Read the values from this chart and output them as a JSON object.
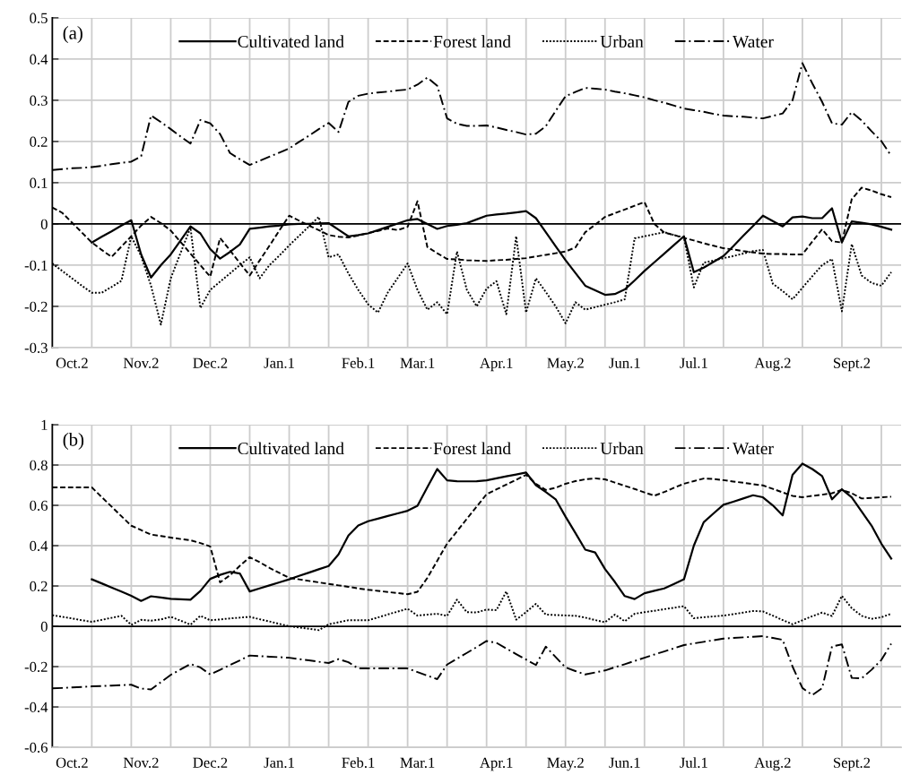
{
  "chart_data": [
    {
      "type": "line",
      "annotations": [
        "(a)"
      ],
      "legend": "top",
      "grid": true,
      "categories": [
        null,
        null,
        "Oct.2",
        null,
        null,
        null,
        null,
        null,
        null,
        "Nov.2",
        null,
        null,
        null,
        null,
        null,
        null,
        "Dec.2",
        null,
        null,
        null,
        null,
        null,
        null,
        "Jan.1",
        null,
        null,
        null,
        null,
        null,
        null,
        null,
        "Feb.1",
        null,
        null,
        null,
        null,
        null,
        "Mar.1",
        null,
        null,
        null,
        null,
        null,
        null,
        null,
        "Apr.1",
        null,
        null,
        null,
        null,
        null,
        null,
        "May.2",
        null,
        null,
        null,
        null,
        null,
        "Jun.1",
        null,
        null,
        null,
        null,
        null,
        null,
        "Jul.1",
        null,
        null,
        null,
        null,
        null,
        null,
        null,
        "Aug.2",
        null,
        null,
        null,
        null,
        null,
        null,
        null,
        "Sept.2",
        null,
        null,
        null,
        null,
        null
      ],
      "ylim": [
        -0.3,
        0.5
      ],
      "yticks": [
        -0.3,
        -0.2,
        -0.1,
        0,
        0.1,
        0.2,
        0.3,
        0.4,
        0.5
      ],
      "ref_lines": [
        {
          "axis": "y",
          "value": 0,
          "color": "#000000"
        }
      ],
      "series": [
        {
          "name": "Cultivated land",
          "color": "#000000",
          "line_style": "solid",
          "values": [
            null,
            null,
            null,
            null,
            -0.045,
            -0.031,
            -0.018,
            -0.004,
            0.009,
            -0.074,
            -0.13,
            -0.1,
            -0.074,
            -0.04,
            -0.006,
            -0.023,
            -0.061,
            -0.084,
            -0.068,
            -0.05,
            -0.012,
            -0.009,
            -0.006,
            -0.004,
            -0.001,
            0,
            0,
            0.001,
            0.002,
            -0.014,
            -0.03,
            -0.027,
            -0.023,
            -0.015,
            -0.007,
            0.001,
            0.009,
            0.012,
            0,
            -0.012,
            -0.005,
            -0.002,
            0.002,
            0.011,
            0.02,
            0.023,
            0.025,
            0.028,
            0.031,
            0.014,
            -0.02,
            -0.054,
            -0.088,
            -0.119,
            -0.15,
            -0.161,
            -0.172,
            -0.17,
            -0.159,
            -0.137,
            -0.114,
            -0.093,
            -0.072,
            -0.051,
            -0.03,
            -0.117,
            -0.106,
            -0.092,
            -0.078,
            -0.054,
            -0.029,
            -0.005,
            0.02,
            0.007,
            -0.006,
            0.016,
            0.018,
            0.014,
            0.014,
            0.038,
            -0.045,
            0.006,
            0.003,
            -0.001,
            -0.007,
            -0.014,
            null
          ]
        },
        {
          "name": "Forest land",
          "color": "#000000",
          "line_style": "dashed",
          "values": [
            0.04,
            0.027,
            0.003,
            -0.021,
            -0.045,
            -0.063,
            -0.08,
            -0.055,
            -0.03,
            -0.004,
            0.017,
            0.002,
            -0.016,
            -0.044,
            -0.072,
            -0.1,
            -0.128,
            -0.034,
            -0.064,
            -0.095,
            -0.125,
            -0.089,
            -0.053,
            -0.016,
            0.02,
            0.008,
            -0.004,
            -0.015,
            -0.027,
            -0.031,
            -0.033,
            -0.028,
            -0.022,
            -0.017,
            -0.011,
            -0.015,
            -0.007,
            0.055,
            -0.056,
            -0.071,
            -0.085,
            -0.086,
            -0.088,
            -0.089,
            -0.09,
            -0.088,
            -0.087,
            -0.085,
            -0.083,
            -0.079,
            -0.075,
            -0.071,
            -0.067,
            -0.057,
            -0.02,
            -0.002,
            0.017,
            0.026,
            0.035,
            0.044,
            0.053,
            0,
            -0.021,
            -0.027,
            -0.034,
            -0.04,
            -0.047,
            -0.053,
            -0.059,
            -0.062,
            -0.066,
            -0.069,
            -0.072,
            -0.073,
            -0.073,
            -0.074,
            -0.074,
            -0.043,
            -0.013,
            -0.042,
            -0.045,
            0.06,
            0.088,
            0.081,
            0.072,
            0.065,
            null
          ]
        },
        {
          "name": "Urban",
          "color": "#000000",
          "line_style": "dotted",
          "values": [
            -0.096,
            -0.114,
            -0.132,
            -0.15,
            -0.167,
            -0.167,
            -0.153,
            -0.138,
            -0.03,
            -0.078,
            -0.15,
            -0.244,
            -0.132,
            -0.07,
            -0.009,
            -0.204,
            -0.16,
            -0.14,
            -0.12,
            -0.1,
            -0.081,
            -0.132,
            -0.1,
            -0.077,
            -0.052,
            -0.029,
            -0.006,
            0.017,
            -0.081,
            -0.074,
            -0.12,
            -0.16,
            -0.195,
            -0.215,
            -0.166,
            -0.131,
            -0.096,
            -0.16,
            -0.208,
            -0.19,
            -0.219,
            -0.067,
            -0.16,
            -0.2,
            -0.157,
            -0.139,
            -0.219,
            -0.03,
            -0.215,
            -0.132,
            -0.165,
            -0.2,
            -0.241,
            -0.19,
            -0.208,
            -0.202,
            -0.196,
            -0.19,
            -0.183,
            -0.035,
            -0.03,
            -0.025,
            -0.02,
            -0.027,
            -0.033,
            -0.154,
            -0.094,
            -0.089,
            -0.083,
            -0.078,
            -0.072,
            -0.066,
            -0.063,
            -0.145,
            -0.163,
            -0.183,
            -0.155,
            -0.127,
            -0.1,
            -0.085,
            -0.212,
            -0.049,
            -0.125,
            -0.143,
            -0.15,
            -0.117,
            null
          ]
        },
        {
          "name": "Water",
          "color": "#000000",
          "line_style": "dashdot",
          "values": [
            0.131,
            0.133,
            0.135,
            0.136,
            0.138,
            0.141,
            0.145,
            0.148,
            0.151,
            0.164,
            0.263,
            0.247,
            0.23,
            0.212,
            0.195,
            0.252,
            0.244,
            0.218,
            0.172,
            0.157,
            0.143,
            0.153,
            0.163,
            0.173,
            0.183,
            0.199,
            0.214,
            0.23,
            0.245,
            0.223,
            0.296,
            0.311,
            0.316,
            0.319,
            0.321,
            0.324,
            0.326,
            0.338,
            0.355,
            0.335,
            0.256,
            0.243,
            0.238,
            0.238,
            0.239,
            0.234,
            0.228,
            0.223,
            0.217,
            0.219,
            0.237,
            0.274,
            0.31,
            0.32,
            0.33,
            0.328,
            0.326,
            0.321,
            0.317,
            0.312,
            0.307,
            0.3,
            0.294,
            0.287,
            0.28,
            0.276,
            0.272,
            0.267,
            0.263,
            0.261,
            0.26,
            0.258,
            0.256,
            0.262,
            0.268,
            0.3,
            0.39,
            0.341,
            0.296,
            0.244,
            0.241,
            0.271,
            0.251,
            0.225,
            0.201,
            0.165,
            null
          ]
        }
      ]
    },
    {
      "type": "line",
      "annotations": [
        "(b)"
      ],
      "legend": "top",
      "grid": true,
      "categories": [
        null,
        null,
        "Oct.2",
        null,
        null,
        null,
        null,
        null,
        null,
        "Nov.2",
        null,
        null,
        null,
        null,
        null,
        null,
        "Dec.2",
        null,
        null,
        null,
        null,
        null,
        null,
        "Jan.1",
        null,
        null,
        null,
        null,
        null,
        null,
        null,
        "Feb.1",
        null,
        null,
        null,
        null,
        null,
        "Mar.1",
        null,
        null,
        null,
        null,
        null,
        null,
        null,
        "Apr.1",
        null,
        null,
        null,
        null,
        null,
        null,
        "May.2",
        null,
        null,
        null,
        null,
        null,
        "Jun.1",
        null,
        null,
        null,
        null,
        null,
        null,
        "Jul.1",
        null,
        null,
        null,
        null,
        null,
        null,
        null,
        "Aug.2",
        null,
        null,
        null,
        null,
        null,
        null,
        null,
        "Sept.2",
        null,
        null,
        null,
        null,
        null
      ],
      "ylim": [
        -0.6,
        1
      ],
      "yticks": [
        -0.6,
        -0.4,
        -0.2,
        0,
        0.2,
        0.4,
        0.6,
        0.8,
        1
      ],
      "ref_lines": [
        {
          "axis": "y",
          "value": 0,
          "color": "#000000"
        }
      ],
      "series": [
        {
          "name": "Cultivated land",
          "color": "#000000",
          "line_style": "solid",
          "values": [
            null,
            null,
            null,
            null,
            0.233,
            0.213,
            0.192,
            0.172,
            0.151,
            0.126,
            0.149,
            0.143,
            0.136,
            0.134,
            0.132,
            0.175,
            0.235,
            0.255,
            0.27,
            0.262,
            0.173,
            0.188,
            0.203,
            0.218,
            0.233,
            0.25,
            0.266,
            0.283,
            0.299,
            0.357,
            0.45,
            0.5,
            0.521,
            0.534,
            0.547,
            0.56,
            0.573,
            0.598,
            0.69,
            0.78,
            0.724,
            0.72,
            0.719,
            0.72,
            0.724,
            0.734,
            0.744,
            0.753,
            0.763,
            0.7,
            0.666,
            0.63,
            0.544,
            0.463,
            0.38,
            0.366,
            0.284,
            0.22,
            0.15,
            0.135,
            0.164,
            0.176,
            0.188,
            0.21,
            0.233,
            0.4,
            0.516,
            0.56,
            0.603,
            0.618,
            0.634,
            0.65,
            0.64,
            0.6,
            0.55,
            0.751,
            0.807,
            0.78,
            0.745,
            0.63,
            0.68,
            0.64,
            0.57,
            0.5,
            0.41,
            0.336,
            null
          ]
        },
        {
          "name": "Forest land",
          "color": "#000000",
          "line_style": "dashed",
          "values": [
            0.689,
            0.689,
            0.689,
            0.689,
            0.689,
            0.641,
            0.594,
            0.546,
            0.499,
            0.477,
            0.455,
            0.448,
            0.44,
            0.433,
            0.427,
            0.413,
            0.396,
            0.218,
            0.253,
            0.3,
            0.343,
            0.318,
            0.29,
            0.265,
            0.24,
            0.233,
            0.225,
            0.218,
            0.21,
            0.203,
            0.196,
            0.188,
            0.181,
            0.176,
            0.17,
            0.165,
            0.159,
            0.171,
            0.24,
            0.325,
            0.41,
            0.471,
            0.533,
            0.594,
            0.655,
            0.679,
            0.703,
            0.727,
            0.751,
            0.707,
            0.676,
            0.687,
            0.707,
            0.72,
            0.729,
            0.734,
            0.729,
            0.713,
            0.697,
            0.681,
            0.664,
            0.648,
            0.666,
            0.687,
            0.707,
            0.72,
            0.733,
            0.731,
            0.725,
            0.718,
            0.712,
            0.705,
            0.699,
            0.682,
            0.664,
            0.647,
            0.64,
            0.647,
            0.653,
            0.66,
            0.677,
            0.66,
            0.634,
            0.637,
            0.64,
            0.643,
            null
          ]
        },
        {
          "name": "Urban",
          "color": "#000000",
          "line_style": "dotted",
          "values": [
            0.055,
            0.047,
            0.039,
            0.03,
            0.022,
            0.032,
            0.042,
            0.052,
            0.007,
            0.032,
            0.028,
            0.034,
            0.047,
            0.028,
            0.008,
            0.052,
            0.03,
            0.034,
            0.039,
            0.043,
            0.047,
            0.035,
            0.024,
            0.012,
            0,
            -0.006,
            -0.012,
            -0.019,
            0.01,
            0.02,
            0.03,
            0.03,
            0.03,
            0.044,
            0.059,
            0.073,
            0.087,
            0.053,
            0.058,
            0.062,
            0.052,
            0.132,
            0.07,
            0.069,
            0.083,
            0.08,
            0.173,
            0.033,
            0.07,
            0.111,
            0.058,
            0.056,
            0.054,
            0.052,
            0.043,
            0.031,
            0.02,
            0.058,
            0.025,
            0.062,
            0.07,
            0.077,
            0.085,
            0.092,
            0.1,
            0.04,
            0.045,
            0.049,
            0.053,
            0.06,
            0.068,
            0.076,
            0.074,
            0.053,
            0.031,
            0.01,
            0.03,
            0.05,
            0.068,
            0.051,
            0.151,
            0.09,
            0.052,
            0.037,
            0.045,
            0.062,
            null
          ]
        },
        {
          "name": "Water",
          "color": "#000000",
          "line_style": "dashdot",
          "values": [
            -0.308,
            -0.306,
            -0.303,
            -0.301,
            -0.298,
            -0.296,
            -0.294,
            -0.292,
            -0.29,
            -0.309,
            -0.313,
            -0.277,
            -0.241,
            -0.214,
            -0.187,
            -0.204,
            -0.239,
            -0.216,
            -0.192,
            -0.169,
            -0.145,
            -0.148,
            -0.151,
            -0.153,
            -0.156,
            -0.163,
            -0.169,
            -0.176,
            -0.182,
            -0.163,
            -0.178,
            -0.209,
            -0.209,
            -0.209,
            -0.209,
            -0.209,
            -0.209,
            -0.227,
            -0.245,
            -0.262,
            -0.19,
            -0.161,
            -0.132,
            -0.103,
            -0.073,
            -0.082,
            -0.11,
            -0.138,
            -0.165,
            -0.192,
            -0.101,
            -0.153,
            -0.204,
            -0.222,
            -0.239,
            -0.229,
            -0.219,
            -0.203,
            -0.188,
            -0.172,
            -0.156,
            -0.14,
            -0.125,
            -0.109,
            -0.093,
            -0.085,
            -0.077,
            -0.069,
            -0.061,
            -0.058,
            -0.055,
            -0.052,
            -0.049,
            -0.058,
            -0.067,
            -0.2,
            -0.306,
            -0.341,
            -0.307,
            -0.1,
            -0.09,
            -0.256,
            -0.258,
            -0.216,
            -0.167,
            -0.086,
            null
          ]
        }
      ]
    }
  ]
}
